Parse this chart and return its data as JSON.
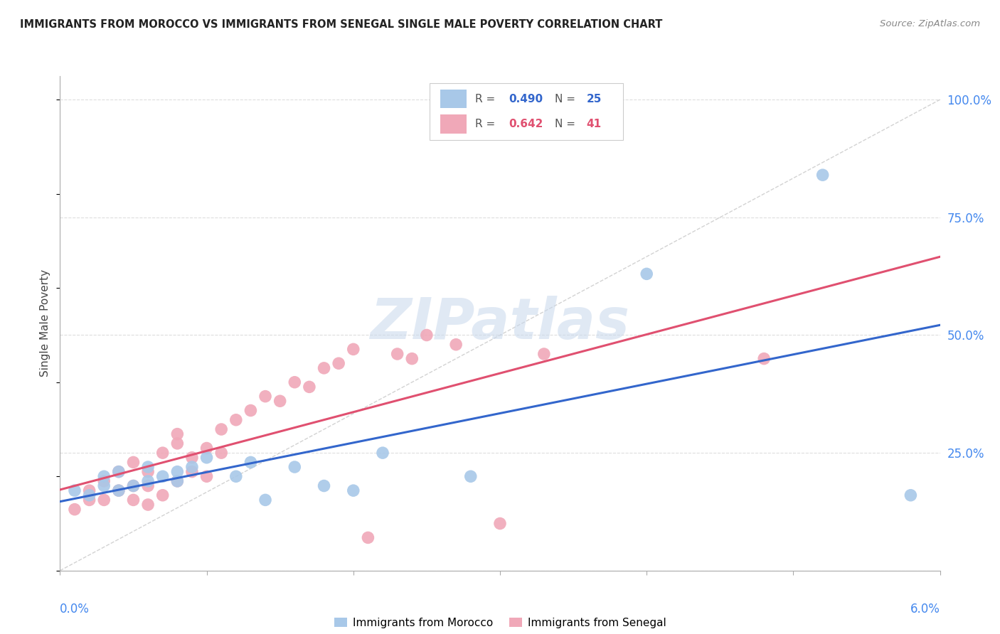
{
  "title": "IMMIGRANTS FROM MOROCCO VS IMMIGRANTS FROM SENEGAL SINGLE MALE POVERTY CORRELATION CHART",
  "source": "Source: ZipAtlas.com",
  "ylabel": "Single Male Poverty",
  "xlim": [
    0.0,
    0.06
  ],
  "ylim": [
    0.0,
    1.05
  ],
  "morocco_R": 0.49,
  "morocco_N": 25,
  "senegal_R": 0.642,
  "senegal_N": 41,
  "morocco_color": "#a8c8e8",
  "senegal_color": "#f0a8b8",
  "morocco_line_color": "#3366cc",
  "senegal_line_color": "#e05070",
  "diagonal_color": "#c0c0c0",
  "watermark": "ZIPatlas",
  "morocco_x": [
    0.001,
    0.002,
    0.003,
    0.003,
    0.004,
    0.004,
    0.005,
    0.006,
    0.006,
    0.007,
    0.008,
    0.008,
    0.009,
    0.01,
    0.012,
    0.013,
    0.014,
    0.016,
    0.018,
    0.02,
    0.022,
    0.028,
    0.04,
    0.052,
    0.058
  ],
  "morocco_y": [
    0.17,
    0.16,
    0.18,
    0.2,
    0.17,
    0.21,
    0.18,
    0.19,
    0.22,
    0.2,
    0.21,
    0.19,
    0.22,
    0.24,
    0.2,
    0.23,
    0.15,
    0.22,
    0.18,
    0.17,
    0.25,
    0.2,
    0.63,
    0.84,
    0.16
  ],
  "senegal_x": [
    0.001,
    0.002,
    0.002,
    0.003,
    0.003,
    0.004,
    0.004,
    0.005,
    0.005,
    0.005,
    0.006,
    0.006,
    0.006,
    0.007,
    0.007,
    0.008,
    0.008,
    0.008,
    0.009,
    0.009,
    0.01,
    0.01,
    0.011,
    0.011,
    0.012,
    0.013,
    0.014,
    0.015,
    0.016,
    0.017,
    0.018,
    0.019,
    0.02,
    0.021,
    0.023,
    0.024,
    0.025,
    0.027,
    0.03,
    0.033,
    0.048
  ],
  "senegal_y": [
    0.13,
    0.15,
    0.17,
    0.15,
    0.19,
    0.17,
    0.21,
    0.15,
    0.18,
    0.23,
    0.14,
    0.18,
    0.21,
    0.16,
    0.25,
    0.19,
    0.27,
    0.29,
    0.21,
    0.24,
    0.2,
    0.26,
    0.25,
    0.3,
    0.32,
    0.34,
    0.37,
    0.36,
    0.4,
    0.39,
    0.43,
    0.44,
    0.47,
    0.07,
    0.46,
    0.45,
    0.5,
    0.48,
    0.1,
    0.46,
    0.45
  ],
  "background_color": "#ffffff",
  "grid_color": "#dddddd",
  "axis_color": "#aaaaaa",
  "label_color": "#4488ee",
  "title_color": "#222222",
  "source_color": "#888888",
  "yticks": [
    0.0,
    0.25,
    0.5,
    0.75,
    1.0
  ],
  "ytick_labels": [
    "",
    "25.0%",
    "50.0%",
    "75.0%",
    "100.0%"
  ],
  "xtick_positions": [
    0.0,
    0.01,
    0.02,
    0.03,
    0.04,
    0.05,
    0.06
  ],
  "legend_box_color": "#ffffff",
  "legend_border_color": "#cccccc"
}
